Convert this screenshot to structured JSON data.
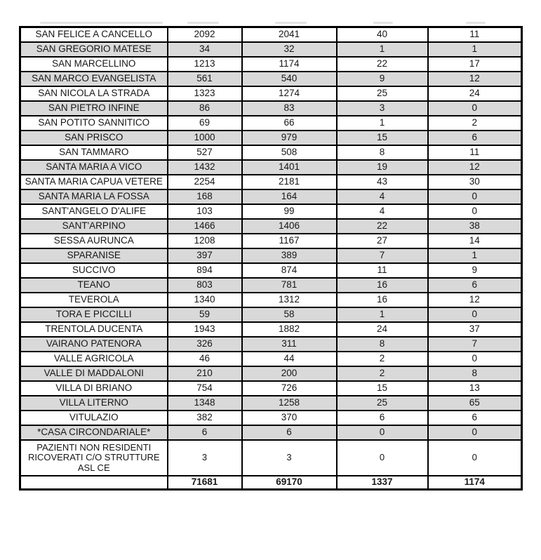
{
  "document": {
    "kind": "scanned-table-page",
    "background_color": "#ffffff",
    "colors": {
      "row_shade": "#d9d9d9",
      "border": "#000000",
      "text": "#171717"
    }
  },
  "chart_data": {
    "type": "table",
    "title": "",
    "columns": [
      "municipality",
      "value_1",
      "value_2",
      "value_3",
      "value_4"
    ],
    "rows": [
      {
        "name": "SAN FELICE A CANCELLO",
        "values": [
          "2092",
          "2041",
          "40",
          "11"
        ],
        "shaded": false
      },
      {
        "name": "SAN GREGORIO MATESE",
        "values": [
          "34",
          "32",
          "1",
          "1"
        ],
        "shaded": true
      },
      {
        "name": "SAN MARCELLINO",
        "values": [
          "1213",
          "1174",
          "22",
          "17"
        ],
        "shaded": false
      },
      {
        "name": "SAN MARCO EVANGELISTA",
        "values": [
          "561",
          "540",
          "9",
          "12"
        ],
        "shaded": true
      },
      {
        "name": "SAN NICOLA LA STRADA",
        "values": [
          "1323",
          "1274",
          "25",
          "24"
        ],
        "shaded": false
      },
      {
        "name": "SAN PIETRO INFINE",
        "values": [
          "86",
          "83",
          "3",
          "0"
        ],
        "shaded": true
      },
      {
        "name": "SAN POTITO SANNITICO",
        "values": [
          "69",
          "66",
          "1",
          "2"
        ],
        "shaded": false
      },
      {
        "name": "SAN PRISCO",
        "values": [
          "1000",
          "979",
          "15",
          "6"
        ],
        "shaded": true
      },
      {
        "name": "SAN TAMMARO",
        "values": [
          "527",
          "508",
          "8",
          "11"
        ],
        "shaded": false
      },
      {
        "name": "SANTA MARIA A VICO",
        "values": [
          "1432",
          "1401",
          "19",
          "12"
        ],
        "shaded": true
      },
      {
        "name": "SANTA MARIA CAPUA VETERE",
        "values": [
          "2254",
          "2181",
          "43",
          "30"
        ],
        "shaded": false
      },
      {
        "name": "SANTA MARIA LA FOSSA",
        "values": [
          "168",
          "164",
          "4",
          "0"
        ],
        "shaded": true
      },
      {
        "name": "SANT'ANGELO D'ALIFE",
        "values": [
          "103",
          "99",
          "4",
          "0"
        ],
        "shaded": false
      },
      {
        "name": "SANT'ARPINO",
        "values": [
          "1466",
          "1406",
          "22",
          "38"
        ],
        "shaded": true
      },
      {
        "name": "SESSA AURUNCA",
        "values": [
          "1208",
          "1167",
          "27",
          "14"
        ],
        "shaded": false
      },
      {
        "name": "SPARANISE",
        "values": [
          "397",
          "389",
          "7",
          "1"
        ],
        "shaded": true
      },
      {
        "name": "SUCCIVO",
        "values": [
          "894",
          "874",
          "11",
          "9"
        ],
        "shaded": false
      },
      {
        "name": "TEANO",
        "values": [
          "803",
          "781",
          "16",
          "6"
        ],
        "shaded": true
      },
      {
        "name": "TEVEROLA",
        "values": [
          "1340",
          "1312",
          "16",
          "12"
        ],
        "shaded": false
      },
      {
        "name": "TORA E PICCILLI",
        "values": [
          "59",
          "58",
          "1",
          "0"
        ],
        "shaded": true
      },
      {
        "name": "TRENTOLA DUCENTA",
        "values": [
          "1943",
          "1882",
          "24",
          "37"
        ],
        "shaded": false
      },
      {
        "name": "VAIRANO PATENORA",
        "values": [
          "326",
          "311",
          "8",
          "7"
        ],
        "shaded": true
      },
      {
        "name": "VALLE AGRICOLA",
        "values": [
          "46",
          "44",
          "2",
          "0"
        ],
        "shaded": false
      },
      {
        "name": "VALLE DI MADDALONI",
        "values": [
          "210",
          "200",
          "2",
          "8"
        ],
        "shaded": true
      },
      {
        "name": "VILLA DI BRIANO",
        "values": [
          "754",
          "726",
          "15",
          "13"
        ],
        "shaded": false
      },
      {
        "name": "VILLA LITERNO",
        "values": [
          "1348",
          "1258",
          "25",
          "65"
        ],
        "shaded": true
      },
      {
        "name": "VITULAZIO",
        "values": [
          "382",
          "370",
          "6",
          "6"
        ],
        "shaded": false
      },
      {
        "name": "*CASA CIRCONDARIALE*",
        "values": [
          "6",
          "6",
          "0",
          "0"
        ],
        "shaded": true
      },
      {
        "name": "PAZIENTI NON RESIDENTI RICOVERATI C/O STRUTTURE ASL CE",
        "values": [
          "3",
          "3",
          "0",
          "0"
        ],
        "shaded": false,
        "tall": true
      }
    ],
    "totals": {
      "name": "",
      "values": [
        "71681",
        "69170",
        "1337",
        "1174"
      ]
    }
  }
}
